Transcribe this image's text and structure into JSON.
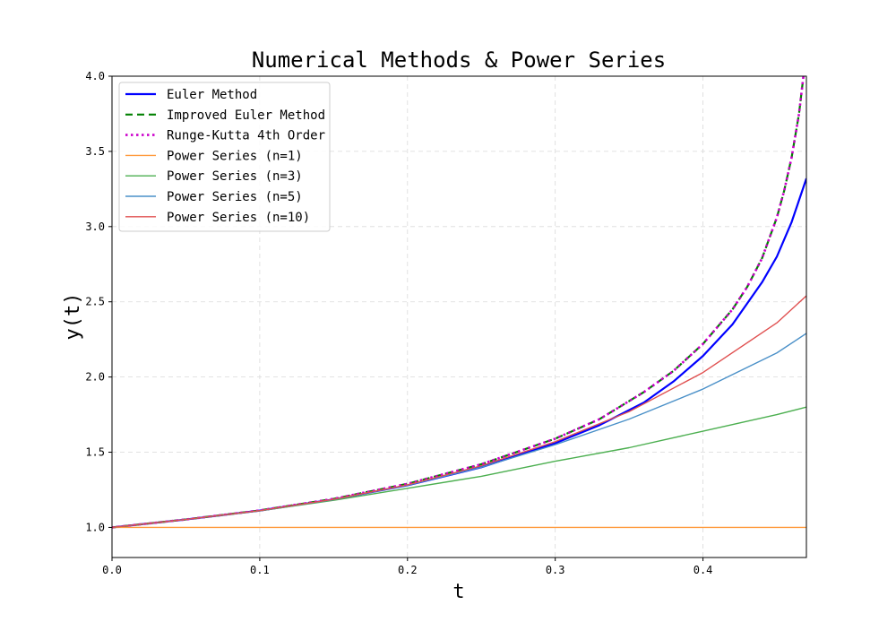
{
  "chart_data": {
    "type": "line",
    "title": "Numerical Methods & Power Series",
    "xlabel": "t",
    "ylabel": "y(t)",
    "xlim": [
      0.0,
      0.47
    ],
    "ylim": [
      0.8,
      4.0
    ],
    "x_ticks": [
      0.0,
      0.1,
      0.2,
      0.3,
      0.4
    ],
    "x_tick_labels": [
      "0.0",
      "0.1",
      "0.2",
      "0.3",
      "0.4"
    ],
    "y_ticks": [
      1.0,
      1.5,
      2.0,
      2.5,
      3.0,
      3.5,
      4.0
    ],
    "y_tick_labels": [
      "1.0",
      "1.5",
      "2.0",
      "2.5",
      "3.0",
      "3.5",
      "4.0"
    ],
    "grid": true,
    "legend_position": "top-left",
    "series": [
      {
        "name": "Euler Method",
        "color": "#0000ff",
        "dash": "solid",
        "width": 2.2,
        "x": [
          0,
          0.05,
          0.1,
          0.15,
          0.2,
          0.25,
          0.3,
          0.33,
          0.36,
          0.38,
          0.4,
          0.42,
          0.44,
          0.45,
          0.46,
          0.47
        ],
        "y": [
          1.0,
          1.053,
          1.112,
          1.186,
          1.28,
          1.4,
          1.56,
          1.68,
          1.83,
          1.97,
          2.14,
          2.35,
          2.63,
          2.8,
          3.03,
          3.32
        ]
      },
      {
        "name": "Improved Euler Method",
        "color": "#008000",
        "dash": "8,5",
        "width": 2.2,
        "x": [
          0,
          0.05,
          0.1,
          0.15,
          0.2,
          0.25,
          0.3,
          0.33,
          0.36,
          0.38,
          0.4,
          0.42,
          0.43,
          0.44,
          0.45,
          0.455,
          0.46,
          0.465,
          0.468
        ],
        "y": [
          1.0,
          1.053,
          1.113,
          1.19,
          1.29,
          1.42,
          1.59,
          1.72,
          1.9,
          2.04,
          2.22,
          2.45,
          2.6,
          2.79,
          3.06,
          3.24,
          3.46,
          3.75,
          4.0
        ]
      },
      {
        "name": "Runge-Kutta 4th Order",
        "color": "#cc00cc",
        "dash": "2.5,3.5",
        "width": 2.6,
        "x": [
          0,
          0.05,
          0.1,
          0.15,
          0.2,
          0.25,
          0.3,
          0.33,
          0.36,
          0.38,
          0.4,
          0.42,
          0.43,
          0.44,
          0.45,
          0.455,
          0.46,
          0.465,
          0.468
        ],
        "y": [
          1.0,
          1.053,
          1.113,
          1.19,
          1.29,
          1.42,
          1.59,
          1.72,
          1.9,
          2.04,
          2.22,
          2.45,
          2.6,
          2.79,
          3.06,
          3.24,
          3.46,
          3.75,
          4.0
        ]
      },
      {
        "name": "Power Series (n=1)",
        "color": "#ff9a3c",
        "dash": "solid",
        "width": 1.4,
        "x": [
          0,
          0.47
        ],
        "y": [
          1.0,
          1.0
        ]
      },
      {
        "name": "Power Series (n=3)",
        "color": "#4caf50",
        "dash": "solid",
        "width": 1.4,
        "x": [
          0,
          0.05,
          0.1,
          0.15,
          0.2,
          0.25,
          0.3,
          0.35,
          0.4,
          0.45,
          0.47
        ],
        "y": [
          1.0,
          1.053,
          1.11,
          1.18,
          1.26,
          1.34,
          1.44,
          1.53,
          1.64,
          1.75,
          1.8
        ]
      },
      {
        "name": "Power Series (n=5)",
        "color": "#4a90c8",
        "dash": "solid",
        "width": 1.4,
        "x": [
          0,
          0.05,
          0.1,
          0.15,
          0.2,
          0.25,
          0.3,
          0.35,
          0.4,
          0.45,
          0.47
        ],
        "y": [
          1.0,
          1.053,
          1.112,
          1.185,
          1.28,
          1.4,
          1.55,
          1.72,
          1.92,
          2.16,
          2.29
        ]
      },
      {
        "name": "Power Series (n=10)",
        "color": "#e05050",
        "dash": "solid",
        "width": 1.4,
        "x": [
          0,
          0.05,
          0.1,
          0.15,
          0.2,
          0.25,
          0.3,
          0.35,
          0.4,
          0.45,
          0.47
        ],
        "y": [
          1.0,
          1.053,
          1.112,
          1.187,
          1.283,
          1.41,
          1.57,
          1.77,
          2.03,
          2.36,
          2.54
        ]
      }
    ]
  }
}
